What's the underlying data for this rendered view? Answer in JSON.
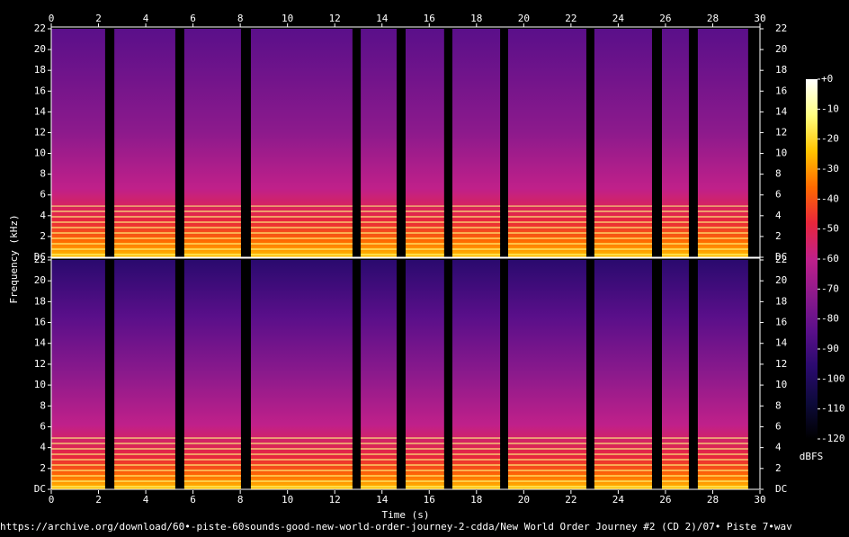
{
  "chart_data": {
    "type": "spectrogram",
    "xlabel": "Time (s)",
    "ylabel": "Frequency (kHz)",
    "colorbar_label": "dBFS",
    "caption": "https://archive.org/download/60•-piste-60sounds-good-new-world-order-journey-2-cdda/New World Order Journey #2 (CD 2)/07• Piste 7•wav",
    "xlim": [
      0,
      30
    ],
    "xticks": [
      0,
      2,
      4,
      6,
      8,
      10,
      12,
      14,
      16,
      18,
      20,
      22,
      24,
      26,
      28,
      30
    ],
    "ylim": [
      0,
      22
    ],
    "yticks": [
      {
        "value": 0,
        "label": "DC"
      },
      2,
      4,
      6,
      8,
      10,
      12,
      14,
      16,
      18,
      20,
      22
    ],
    "zlim": [
      -120,
      0
    ],
    "zticks": [
      {
        "value": 0,
        "label": "+0"
      },
      -10,
      -20,
      -30,
      -40,
      -50,
      -60,
      -70,
      -80,
      -90,
      -100,
      -110,
      -120
    ],
    "colormap": [
      "#000000",
      "#0d0a3a",
      "#2a0a6e",
      "#5a0f8a",
      "#8c1a8c",
      "#c0208a",
      "#e8263c",
      "#ff6a00",
      "#ffc400",
      "#ffff80",
      "#ffffff"
    ],
    "segments": [
      [
        0,
        2.28
      ],
      [
        2.67,
        5.25
      ],
      [
        5.63,
        8.03
      ],
      [
        8.45,
        12.75
      ],
      [
        13.1,
        14.62
      ],
      [
        15,
        16.63
      ],
      [
        16.98,
        19
      ],
      [
        19.34,
        22.65
      ],
      [
        22.99,
        25.43
      ],
      [
        25.85,
        26.99
      ],
      [
        27.37,
        29.5
      ]
    ]
  }
}
